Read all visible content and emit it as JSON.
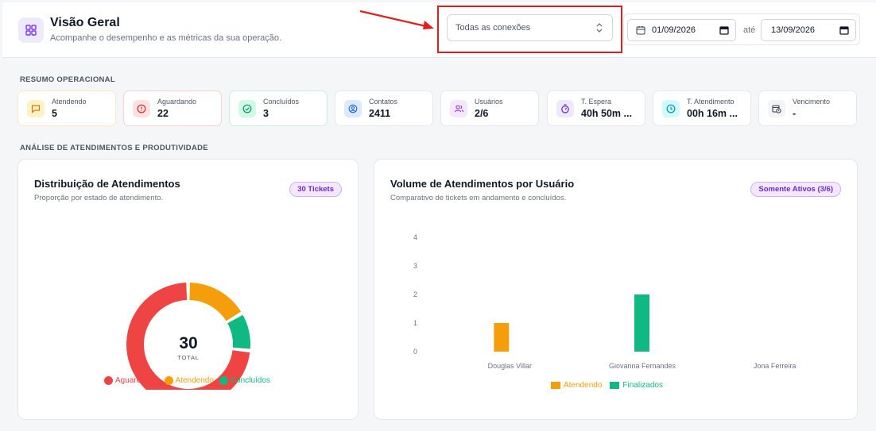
{
  "header": {
    "title": "Visão Geral",
    "subtitle": "Acompanhe o desempenho e as métricas da sua operação.",
    "connection_select": "Todas as conexões",
    "date_from": "01/09/2026",
    "date_sep": "até",
    "date_to": "13/09/2026"
  },
  "colors": {
    "aguardando": "#ef4444",
    "atendendo": "#f59e0b",
    "concluidos": "#10b981",
    "accent": "#7c3aed",
    "highlight": "#e11d1d"
  },
  "resumo": {
    "label": "RESUMO OPERACIONAL",
    "cards": [
      {
        "label": "Atendendo",
        "value": "5",
        "icon": "chat-icon"
      },
      {
        "label": "Aguardando",
        "value": "22",
        "icon": "alert-icon"
      },
      {
        "label": "Concluídos",
        "value": "3",
        "icon": "check-icon"
      },
      {
        "label": "Contatos",
        "value": "2411",
        "icon": "contact-icon"
      },
      {
        "label": "Usuários",
        "value": "2/6",
        "icon": "users-icon"
      },
      {
        "label": "T. Espera",
        "value": "40h 50m ...",
        "icon": "timer-icon"
      },
      {
        "label": "T. Atendimento",
        "value": "00h 16m ...",
        "icon": "clock-icon"
      },
      {
        "label": "Vencimento",
        "value": "-",
        "icon": "calendar-clock-icon"
      }
    ]
  },
  "analise": {
    "label": "ANÁLISE DE ATENDIMENTOS E PRODUTIVIDADE"
  },
  "donut": {
    "title": "Distribuição de Atendimentos",
    "subtitle": "Proporção por estado de atendimento.",
    "badge": "30 Tickets",
    "total": "30",
    "total_label": "TOTAL"
  },
  "bar": {
    "title": "Volume de Atendimentos por Usuário",
    "subtitle": "Comparativo de tickets em andamento e concluídos.",
    "badge": "Somente Ativos (3/6)"
  },
  "chart_data": [
    {
      "type": "pie",
      "categories": [
        "Aguardando",
        "Atendendo",
        "Concluídos"
      ],
      "values": [
        22,
        5,
        3
      ]
    },
    {
      "type": "bar",
      "categories": [
        "Douglas Villar",
        "Giovanna Fernandes",
        "Jona Ferreira"
      ],
      "series": [
        {
          "name": "Atendendo",
          "values": [
            1,
            0,
            0
          ]
        },
        {
          "name": "Finalizados",
          "values": [
            0,
            2,
            0
          ]
        }
      ],
      "yticks": [
        "0",
        "1",
        "2",
        "3",
        "4"
      ],
      "ylim": [
        0,
        4
      ]
    }
  ]
}
